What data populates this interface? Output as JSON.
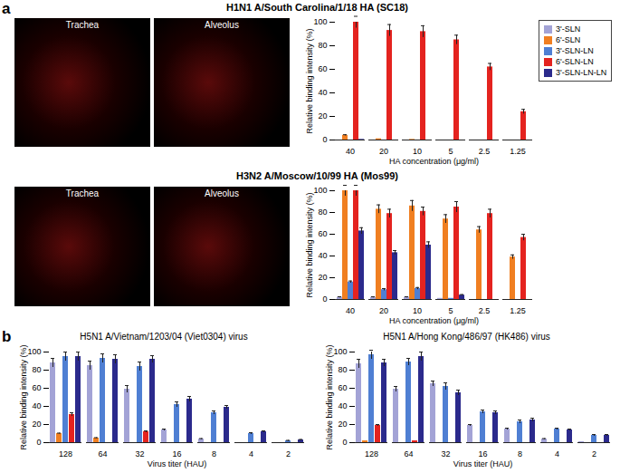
{
  "panel_labels": [
    "a",
    "b"
  ],
  "micrograph_labels": [
    [
      "Trachea",
      "Alveolus"
    ],
    [
      "Trachea",
      "Alveolus"
    ]
  ],
  "chart_data": [
    {
      "type": "bar",
      "title": "H1N1 A/South Carolina/1/18 HA (SC18)",
      "x_label": "HA concentration (μg/ml)",
      "y_label": "Relative binding intensity (%)",
      "categories": [
        40,
        20,
        10,
        5,
        2.5,
        1.25
      ],
      "ylim": [
        0,
        100
      ],
      "yticks": [
        0,
        20,
        40,
        60,
        80,
        100
      ],
      "legend": "top-right",
      "series": [
        {
          "name": "3'-SLN",
          "color": "#a3a3d6",
          "values": [
            0,
            0,
            0,
            0,
            0,
            0
          ],
          "errors": [
            0,
            0,
            0,
            0,
            0,
            0
          ]
        },
        {
          "name": "6'-SLN",
          "color": "#f07f21",
          "values": [
            4,
            1,
            0.5,
            0,
            0,
            0
          ],
          "errors": [
            0.5,
            0,
            0,
            0,
            0,
            0
          ]
        },
        {
          "name": "3'-SLN-LN",
          "color": "#4f7fd3",
          "values": [
            0,
            0,
            0,
            0,
            0,
            0
          ],
          "errors": [
            0,
            0,
            0,
            0,
            0,
            0
          ]
        },
        {
          "name": "6'-SLN-LN",
          "color": "#e4231f",
          "values": [
            100,
            93,
            92,
            85,
            62,
            24
          ],
          "errors": [
            5,
            5,
            5,
            4,
            3,
            2
          ]
        },
        {
          "name": "3'-SLN-LN-LN",
          "color": "#2b2a8c",
          "values": [
            0.5,
            0,
            0,
            0,
            0,
            0
          ],
          "errors": [
            0,
            0,
            0,
            0,
            0,
            0
          ]
        }
      ]
    },
    {
      "type": "bar",
      "title": "H3N2 A/Moscow/10/99 HA (Mos99)",
      "x_label": "HA concentration (μg/ml)",
      "y_label": "Relative binding intensity (%)",
      "categories": [
        40,
        20,
        10,
        5,
        2.5,
        1.25
      ],
      "ylim": [
        0,
        100
      ],
      "yticks": [
        0,
        20,
        40,
        60,
        80,
        100
      ],
      "series": [
        {
          "name": "3'-SLN",
          "color": "#a3a3d6",
          "values": [
            2,
            2,
            2,
            1,
            0,
            0
          ],
          "errors": [
            0.5,
            0.5,
            0.5,
            0,
            0,
            0
          ]
        },
        {
          "name": "6'-SLN",
          "color": "#f07f21",
          "values": [
            100,
            83,
            86,
            74,
            64,
            39
          ],
          "errors": [
            5,
            4,
            5,
            4,
            3,
            2
          ]
        },
        {
          "name": "3'-SLN-LN",
          "color": "#4f7fd3",
          "values": [
            16,
            9,
            10,
            1,
            0,
            0
          ],
          "errors": [
            1,
            1,
            1,
            0,
            0,
            0
          ]
        },
        {
          "name": "6'-SLN-LN",
          "color": "#e4231f",
          "values": [
            100,
            79,
            81,
            85,
            79,
            57
          ],
          "errors": [
            5,
            4,
            4,
            5,
            4,
            3
          ]
        },
        {
          "name": "3'-SLN-LN-LN",
          "color": "#2b2a8c",
          "values": [
            63,
            43,
            50,
            4,
            0,
            0
          ],
          "errors": [
            3,
            2,
            3,
            0.5,
            0,
            0
          ]
        }
      ]
    },
    {
      "type": "bar",
      "title": "H5N1 A/Vietnam/1203/04 (Viet0304) virus",
      "x_label": "Virus titer (HAU)",
      "y_label": "Relative binding intensity (%)",
      "categories": [
        128,
        64,
        32,
        16,
        8,
        4,
        2
      ],
      "ylim": [
        0,
        100
      ],
      "yticks": [
        0,
        20,
        40,
        60,
        80,
        100
      ],
      "series": [
        {
          "name": "3'-SLN",
          "color": "#a3a3d6",
          "values": [
            88,
            85,
            59,
            14,
            4,
            0,
            0
          ],
          "errors": [
            5,
            5,
            4,
            1,
            0.5,
            0,
            0
          ]
        },
        {
          "name": "6'-SLN",
          "color": "#f07f21",
          "values": [
            10,
            5,
            0,
            0,
            0,
            0,
            0
          ],
          "errors": [
            0.5,
            0.5,
            0,
            0,
            0,
            0,
            0
          ]
        },
        {
          "name": "3'-SLN-LN",
          "color": "#4f7fd3",
          "values": [
            95,
            93,
            84,
            42,
            33,
            10,
            2
          ],
          "errors": [
            5,
            5,
            5,
            3,
            2,
            1,
            0.5
          ]
        },
        {
          "name": "6'-SLN-LN",
          "color": "#e4231f",
          "values": [
            31,
            0,
            12,
            0,
            0,
            0,
            0
          ],
          "errors": [
            2,
            0,
            1,
            0,
            0,
            0,
            0
          ]
        },
        {
          "name": "3'-SLN-LN-LN",
          "color": "#2b2a8c",
          "values": [
            95,
            92,
            92,
            48,
            39,
            12,
            3
          ],
          "errors": [
            5,
            5,
            4,
            3,
            2,
            1,
            0.5
          ]
        }
      ]
    },
    {
      "type": "bar",
      "title": "H5N1 A/Hong Kong/486/97 (HK486) virus",
      "x_label": "Virus titer (HAU)",
      "y_label": "Relative binding intensity (%)",
      "categories": [
        128,
        64,
        32,
        16,
        8,
        4,
        2
      ],
      "ylim": [
        0,
        100
      ],
      "yticks": [
        0,
        20,
        40,
        60,
        80,
        100
      ],
      "series": [
        {
          "name": "3'-SLN",
          "color": "#a3a3d6",
          "values": [
            87,
            59,
            65,
            19,
            15,
            4,
            1
          ],
          "errors": [
            5,
            3,
            3,
            1,
            1,
            0.5,
            0
          ]
        },
        {
          "name": "6'-SLN",
          "color": "#f07f21",
          "values": [
            2,
            0,
            0,
            0,
            0,
            0,
            0
          ],
          "errors": [
            0,
            0,
            0,
            0,
            0,
            0,
            0
          ]
        },
        {
          "name": "3'-SLN-LN",
          "color": "#4f7fd3",
          "values": [
            97,
            89,
            62,
            34,
            23,
            15,
            8
          ],
          "errors": [
            5,
            4,
            4,
            2,
            2,
            1,
            1
          ]
        },
        {
          "name": "6'-SLN-LN",
          "color": "#e4231f",
          "values": [
            19,
            2,
            0,
            0,
            0,
            0,
            0
          ],
          "errors": [
            1,
            0,
            0,
            0,
            0,
            0,
            0
          ]
        },
        {
          "name": "3'-SLN-LN-LN",
          "color": "#2b2a8c",
          "values": [
            88,
            95,
            55,
            33,
            25,
            14,
            8
          ],
          "errors": [
            4,
            5,
            3,
            2,
            2,
            1,
            1
          ]
        }
      ]
    }
  ]
}
